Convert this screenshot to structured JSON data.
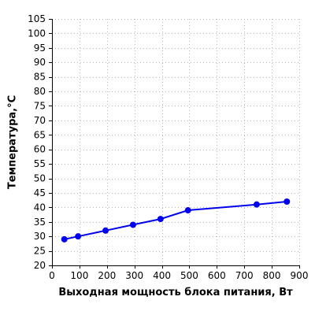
{
  "chart_data": {
    "type": "line",
    "title": "",
    "xlabel": "Выходная мощность блока питания, Вт",
    "ylabel": "Температура,°C",
    "xlim": [
      0,
      900
    ],
    "ylim": [
      20,
      105
    ],
    "xticks": [
      "0",
      "100",
      "200",
      "300",
      "400",
      "500",
      "600",
      "700",
      "800",
      "900"
    ],
    "yticks": [
      "20",
      "25",
      "30",
      "35",
      "40",
      "45",
      "50",
      "55",
      "60",
      "65",
      "70",
      "75",
      "80",
      "85",
      "90",
      "95",
      "100",
      "105"
    ],
    "grid": true,
    "line_color": "#0000ee",
    "series": [
      {
        "x": [
          45,
          95,
          195,
          295,
          395,
          495,
          745,
          855
        ],
        "y": [
          29,
          30,
          32,
          34,
          36,
          39,
          41,
          42
        ]
      }
    ]
  }
}
